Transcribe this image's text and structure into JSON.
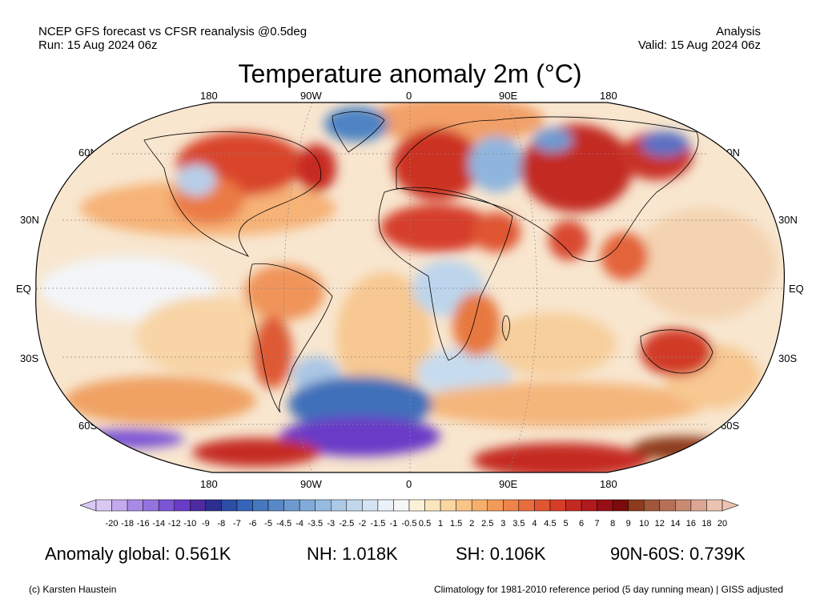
{
  "header": {
    "left_line1": "NCEP GFS forecast vs CFSR reanalysis @0.5deg",
    "left_line2": "Run: 15 Aug 2024 06z",
    "right_line1": "Analysis",
    "right_line2": "Valid: 15 Aug 2024 06z"
  },
  "title": "Temperature anomaly 2m (°C)",
  "map": {
    "projection": "Robinson",
    "lon_labels_top": [
      "180",
      "90W",
      "0",
      "90E",
      "180"
    ],
    "lon_labels_bottom": [
      "180",
      "90W",
      "0",
      "90E",
      "180"
    ],
    "lat_labels": [
      "60N",
      "30N",
      "EQ",
      "30S",
      "60S"
    ]
  },
  "colorbar": {
    "labels": [
      "-20",
      "-18",
      "-16",
      "-14",
      "-12",
      "-10",
      "-9",
      "-8",
      "-7",
      "-6",
      "-5",
      "-4.5",
      "-4",
      "-3.5",
      "-3",
      "-2.5",
      "-2",
      "-1.5",
      "-1",
      "-0.5",
      "0.5",
      "1",
      "1.5",
      "2",
      "2.5",
      "3",
      "3.5",
      "4",
      "4.5",
      "5",
      "6",
      "7",
      "8",
      "9",
      "10",
      "12",
      "14",
      "16",
      "18",
      "20"
    ],
    "colors": [
      "#d9c9f2",
      "#c3a9ee",
      "#a98ae6",
      "#9473df",
      "#7b55d4",
      "#6a3bc7",
      "#4e2b9f",
      "#2d2f8f",
      "#2c4ea6",
      "#3564b8",
      "#4577bd",
      "#5888c6",
      "#6e9ad0",
      "#82aad8",
      "#97badf",
      "#acc9e6",
      "#c0d7ec",
      "#d5e4f3",
      "#eaf1f8",
      "#f6f6f6",
      "#fbf1d9",
      "#fbe6bd",
      "#fad7a1",
      "#f8c586",
      "#f6b06c",
      "#f39a59",
      "#ef834a",
      "#e96c3d",
      "#e05532",
      "#d63e2a",
      "#c52a22",
      "#b11a1c",
      "#960f16",
      "#7a0c0c",
      "#8e3a1c",
      "#a1573a",
      "#b77058",
      "#c98a74",
      "#dba693",
      "#ecc2b1"
    ]
  },
  "stats": {
    "global": "Anomaly global: 0.561K",
    "nh": "NH: 1.018K",
    "sh": "SH: 0.106K",
    "polar": "90N-60S: 0.739K"
  },
  "footer": {
    "credit": "(c) Karsten Haustein",
    "note": "Climatology for 1981-2010 reference period (5 day running mean) | GISS adjusted"
  }
}
